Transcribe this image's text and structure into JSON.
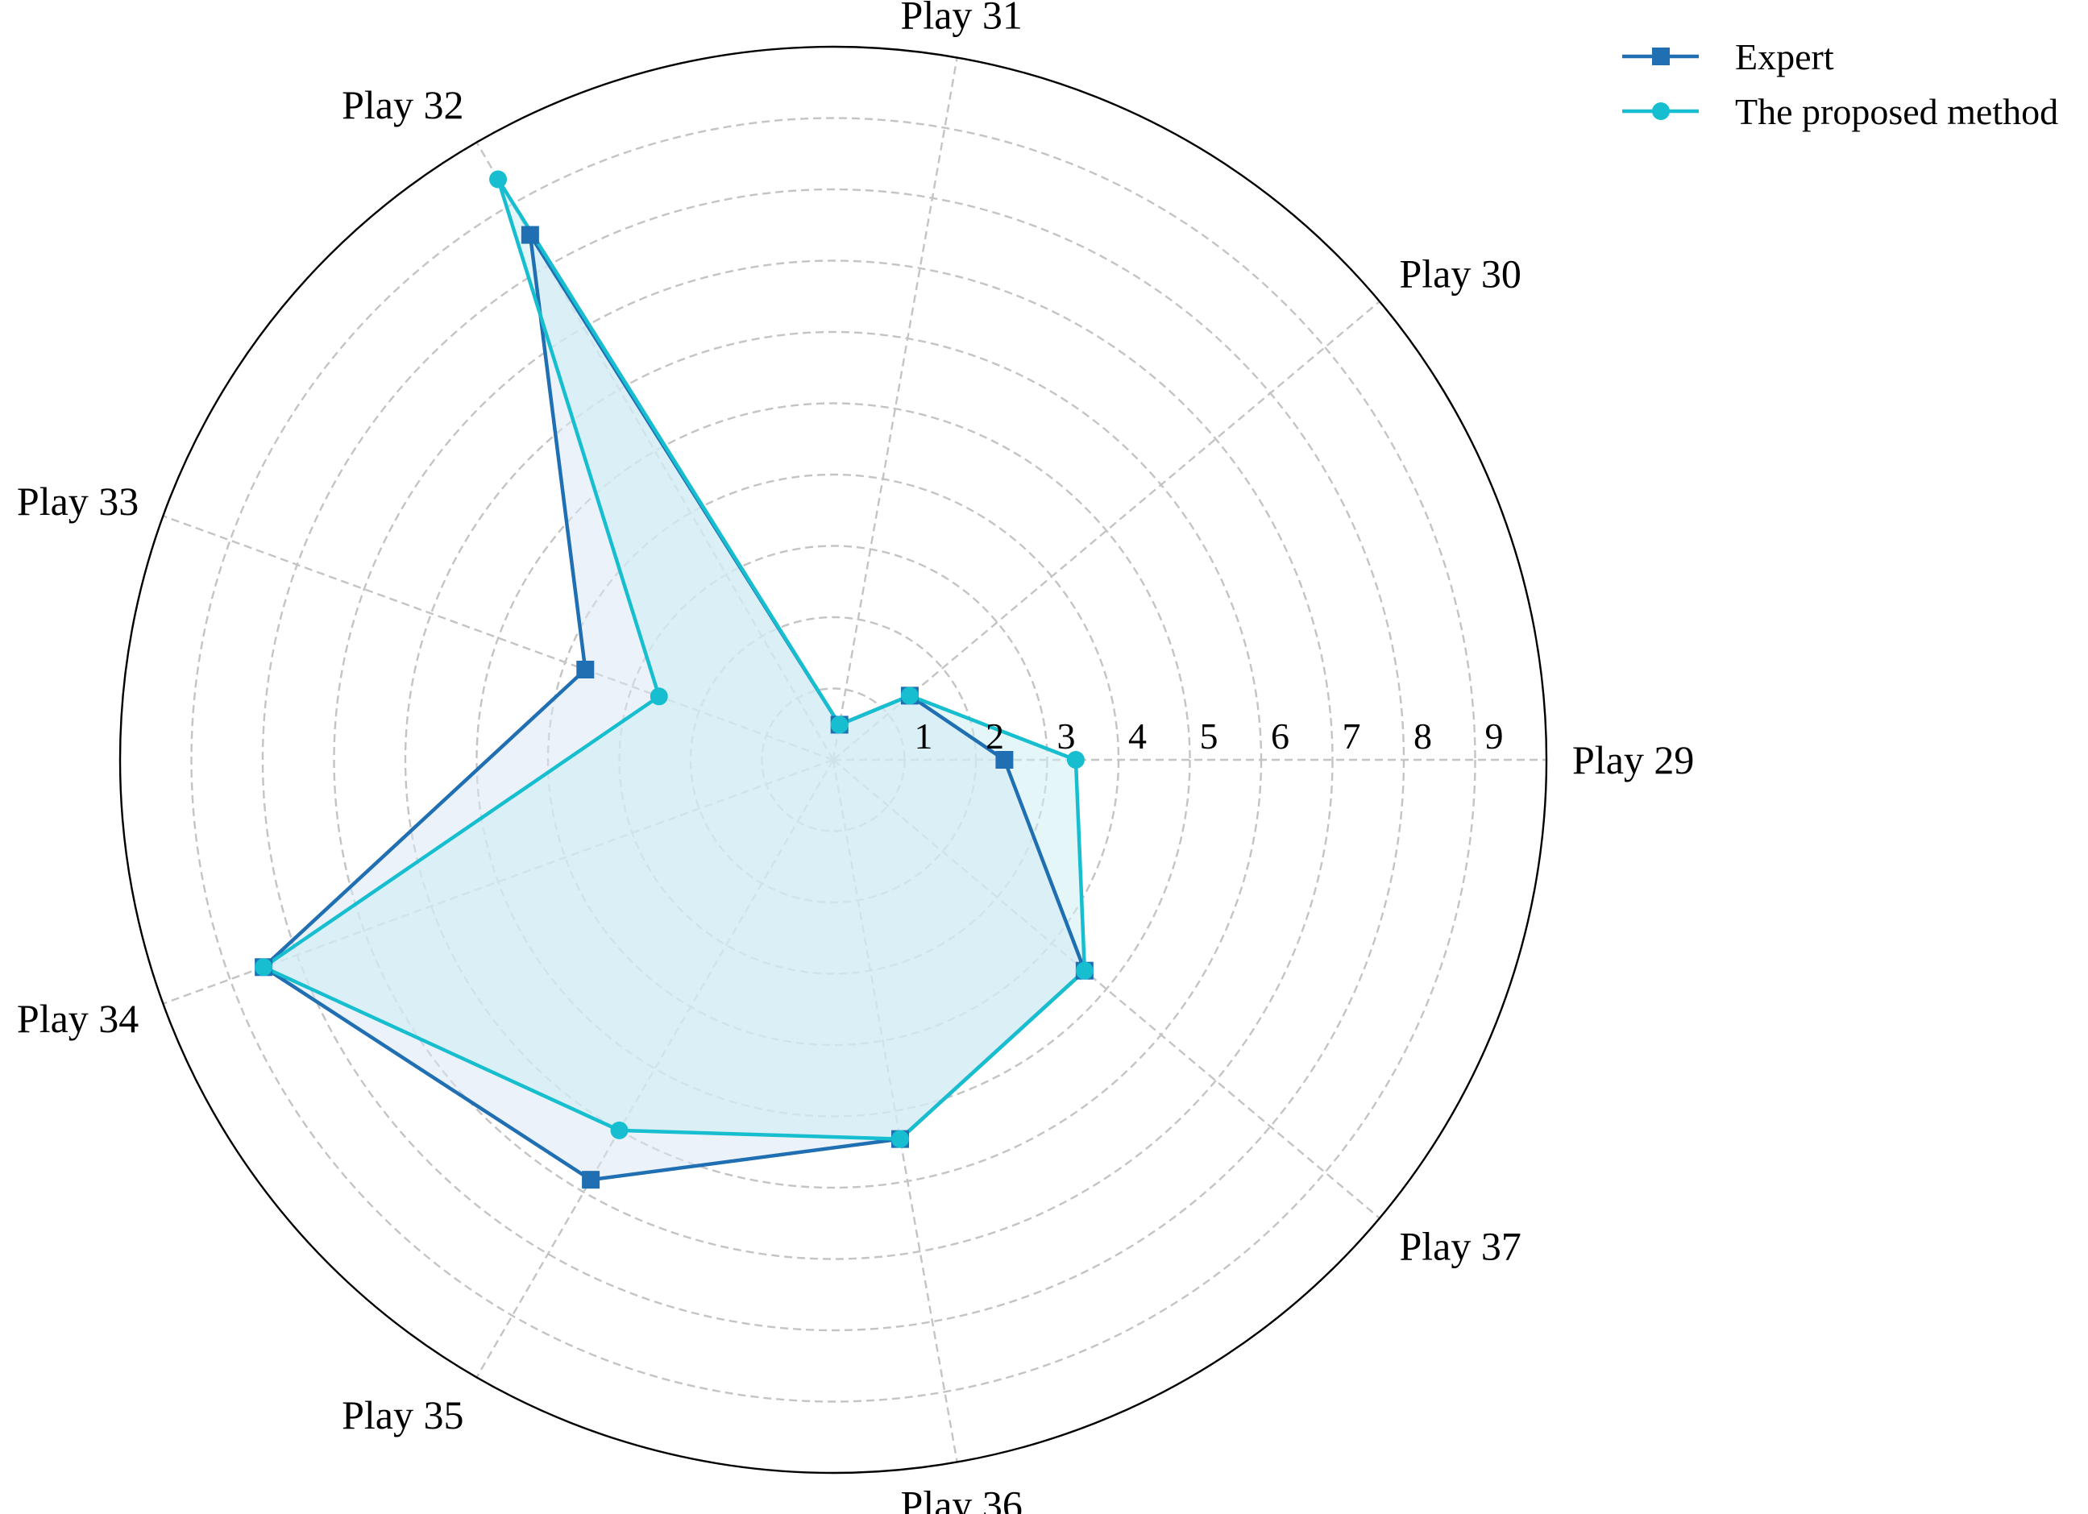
{
  "chart_data": {
    "type": "radar",
    "categories": [
      "Play 29",
      "Play 30",
      "Play 31",
      "Play 32",
      "Play 33",
      "Play 34",
      "Play 35",
      "Play 36",
      "Play 37"
    ],
    "radial_ticks": [
      "1",
      "2",
      "3",
      "4",
      "5",
      "6",
      "7",
      "8",
      "9"
    ],
    "rlim": [
      0,
      10
    ],
    "grid": true,
    "legend_position": "top-right",
    "series": [
      {
        "name": "Expert",
        "values": [
          2.4,
          1.4,
          0.5,
          8.5,
          3.7,
          8.5,
          6.8,
          5.4,
          4.6
        ],
        "color": "#1f6fb2",
        "marker": "square",
        "fill_color": "#dbe8f5"
      },
      {
        "name": "The proposed method",
        "values": [
          3.4,
          1.4,
          0.5,
          9.4,
          2.6,
          8.5,
          6.0,
          5.4,
          4.6
        ],
        "color": "#17becf",
        "marker": "circle",
        "fill_color": "#cdeef2"
      }
    ]
  }
}
